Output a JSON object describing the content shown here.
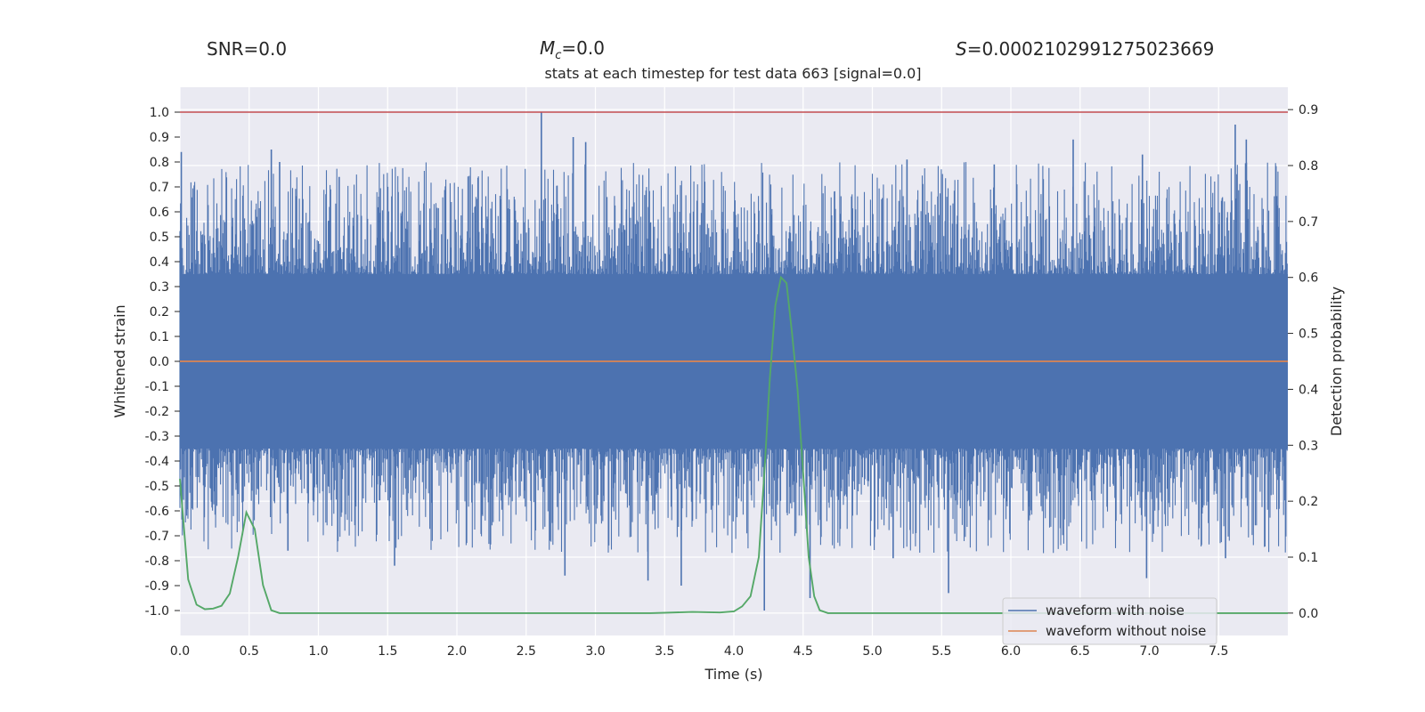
{
  "header": {
    "snr": "SNR=0.0",
    "mc_symbol": "M",
    "mc_sub": "c",
    "mc_value": "=0.0",
    "s_symbol": "S",
    "s_value": "=0.0002102991275023669"
  },
  "chart_data": {
    "type": "line",
    "title": "stats at each timestep for test data 663 [signal=0.0]",
    "xlabel": "Time (s)",
    "ylabel_left": "Whitened strain",
    "ylabel_right": "Detection probability",
    "xlim": [
      0,
      8
    ],
    "ylim_left": [
      -1.1,
      1.1
    ],
    "ylim_right": [
      -0.04,
      0.94
    ],
    "x_ticks": [
      "0.0",
      "0.5",
      "1.0",
      "1.5",
      "2.0",
      "2.5",
      "3.0",
      "3.5",
      "4.0",
      "4.5",
      "5.0",
      "5.5",
      "6.0",
      "6.5",
      "7.0",
      "7.5"
    ],
    "y_ticks_left": [
      "1.0",
      "0.9",
      "0.8",
      "0.7",
      "0.6",
      "0.5",
      "0.4",
      "0.3",
      "0.2",
      "0.1",
      "0.0",
      "-0.1",
      "-0.2",
      "-0.3",
      "-0.4",
      "-0.5",
      "-0.6",
      "-0.7",
      "-0.8",
      "-0.9",
      "-1.0"
    ],
    "y_ticks_right": [
      "0.9",
      "0.8",
      "0.7",
      "0.6",
      "0.5",
      "0.4",
      "0.3",
      "0.2",
      "0.1",
      "0.0"
    ],
    "legend": [
      "waveform with noise",
      "waveform without noise"
    ],
    "colors": {
      "noise": "#4c72b0",
      "clean": "#dd8452",
      "prob": "#55a868",
      "threshold": "#c44e52",
      "panel": "#eaeaf2",
      "grid": "#ffffff"
    },
    "threshold": 1.0,
    "clean_signal_level": 0.0,
    "noise_envelope": {
      "x": [
        0,
        8
      ],
      "upper": 0.35,
      "lower": -0.35,
      "peak_max": 1.0,
      "peak_min": -1.0
    },
    "noise_peaks": [
      {
        "x": 0.01,
        "y": 0.84
      },
      {
        "x": 0.66,
        "y": 0.85
      },
      {
        "x": 0.72,
        "y": 0.8
      },
      {
        "x": 1.15,
        "y": 0.74
      },
      {
        "x": 2.61,
        "y": 1.0
      },
      {
        "x": 2.84,
        "y": 0.9
      },
      {
        "x": 2.93,
        "y": 0.88
      },
      {
        "x": 5.25,
        "y": 0.81
      },
      {
        "x": 5.88,
        "y": 0.79
      },
      {
        "x": 6.45,
        "y": 0.89
      },
      {
        "x": 6.95,
        "y": 0.83
      },
      {
        "x": 7.62,
        "y": 0.95
      },
      {
        "x": 7.7,
        "y": 0.89
      },
      {
        "x": 0.78,
        "y": -0.76
      },
      {
        "x": 1.55,
        "y": -0.82
      },
      {
        "x": 2.78,
        "y": -0.86
      },
      {
        "x": 3.38,
        "y": -0.88
      },
      {
        "x": 3.62,
        "y": -0.9
      },
      {
        "x": 4.22,
        "y": -1.0
      },
      {
        "x": 4.55,
        "y": -0.95
      },
      {
        "x": 5.55,
        "y": -0.93
      },
      {
        "x": 6.98,
        "y": -0.87
      },
      {
        "x": 7.55,
        "y": -0.79
      },
      {
        "x": 5.15,
        "y": -0.79
      }
    ],
    "prob_series": {
      "x": [
        0.0,
        0.06,
        0.12,
        0.18,
        0.24,
        0.3,
        0.36,
        0.42,
        0.48,
        0.54,
        0.6,
        0.66,
        0.72,
        0.8,
        1.0,
        2.0,
        3.0,
        3.4,
        3.7,
        3.9,
        4.0,
        4.06,
        4.12,
        4.18,
        4.22,
        4.26,
        4.3,
        4.34,
        4.38,
        4.42,
        4.46,
        4.5,
        4.54,
        4.58,
        4.62,
        4.68,
        5.0,
        6.0,
        7.0,
        8.0
      ],
      "y": [
        0.24,
        0.06,
        0.015,
        0.007,
        0.008,
        0.013,
        0.035,
        0.1,
        0.18,
        0.15,
        0.05,
        0.005,
        0.0,
        0.0,
        0.0,
        0.0,
        0.0,
        0.0,
        0.002,
        0.001,
        0.003,
        0.012,
        0.03,
        0.1,
        0.25,
        0.42,
        0.55,
        0.6,
        0.59,
        0.5,
        0.4,
        0.25,
        0.1,
        0.03,
        0.005,
        0.0,
        0.0,
        0.0,
        0.0,
        0.0
      ]
    }
  }
}
